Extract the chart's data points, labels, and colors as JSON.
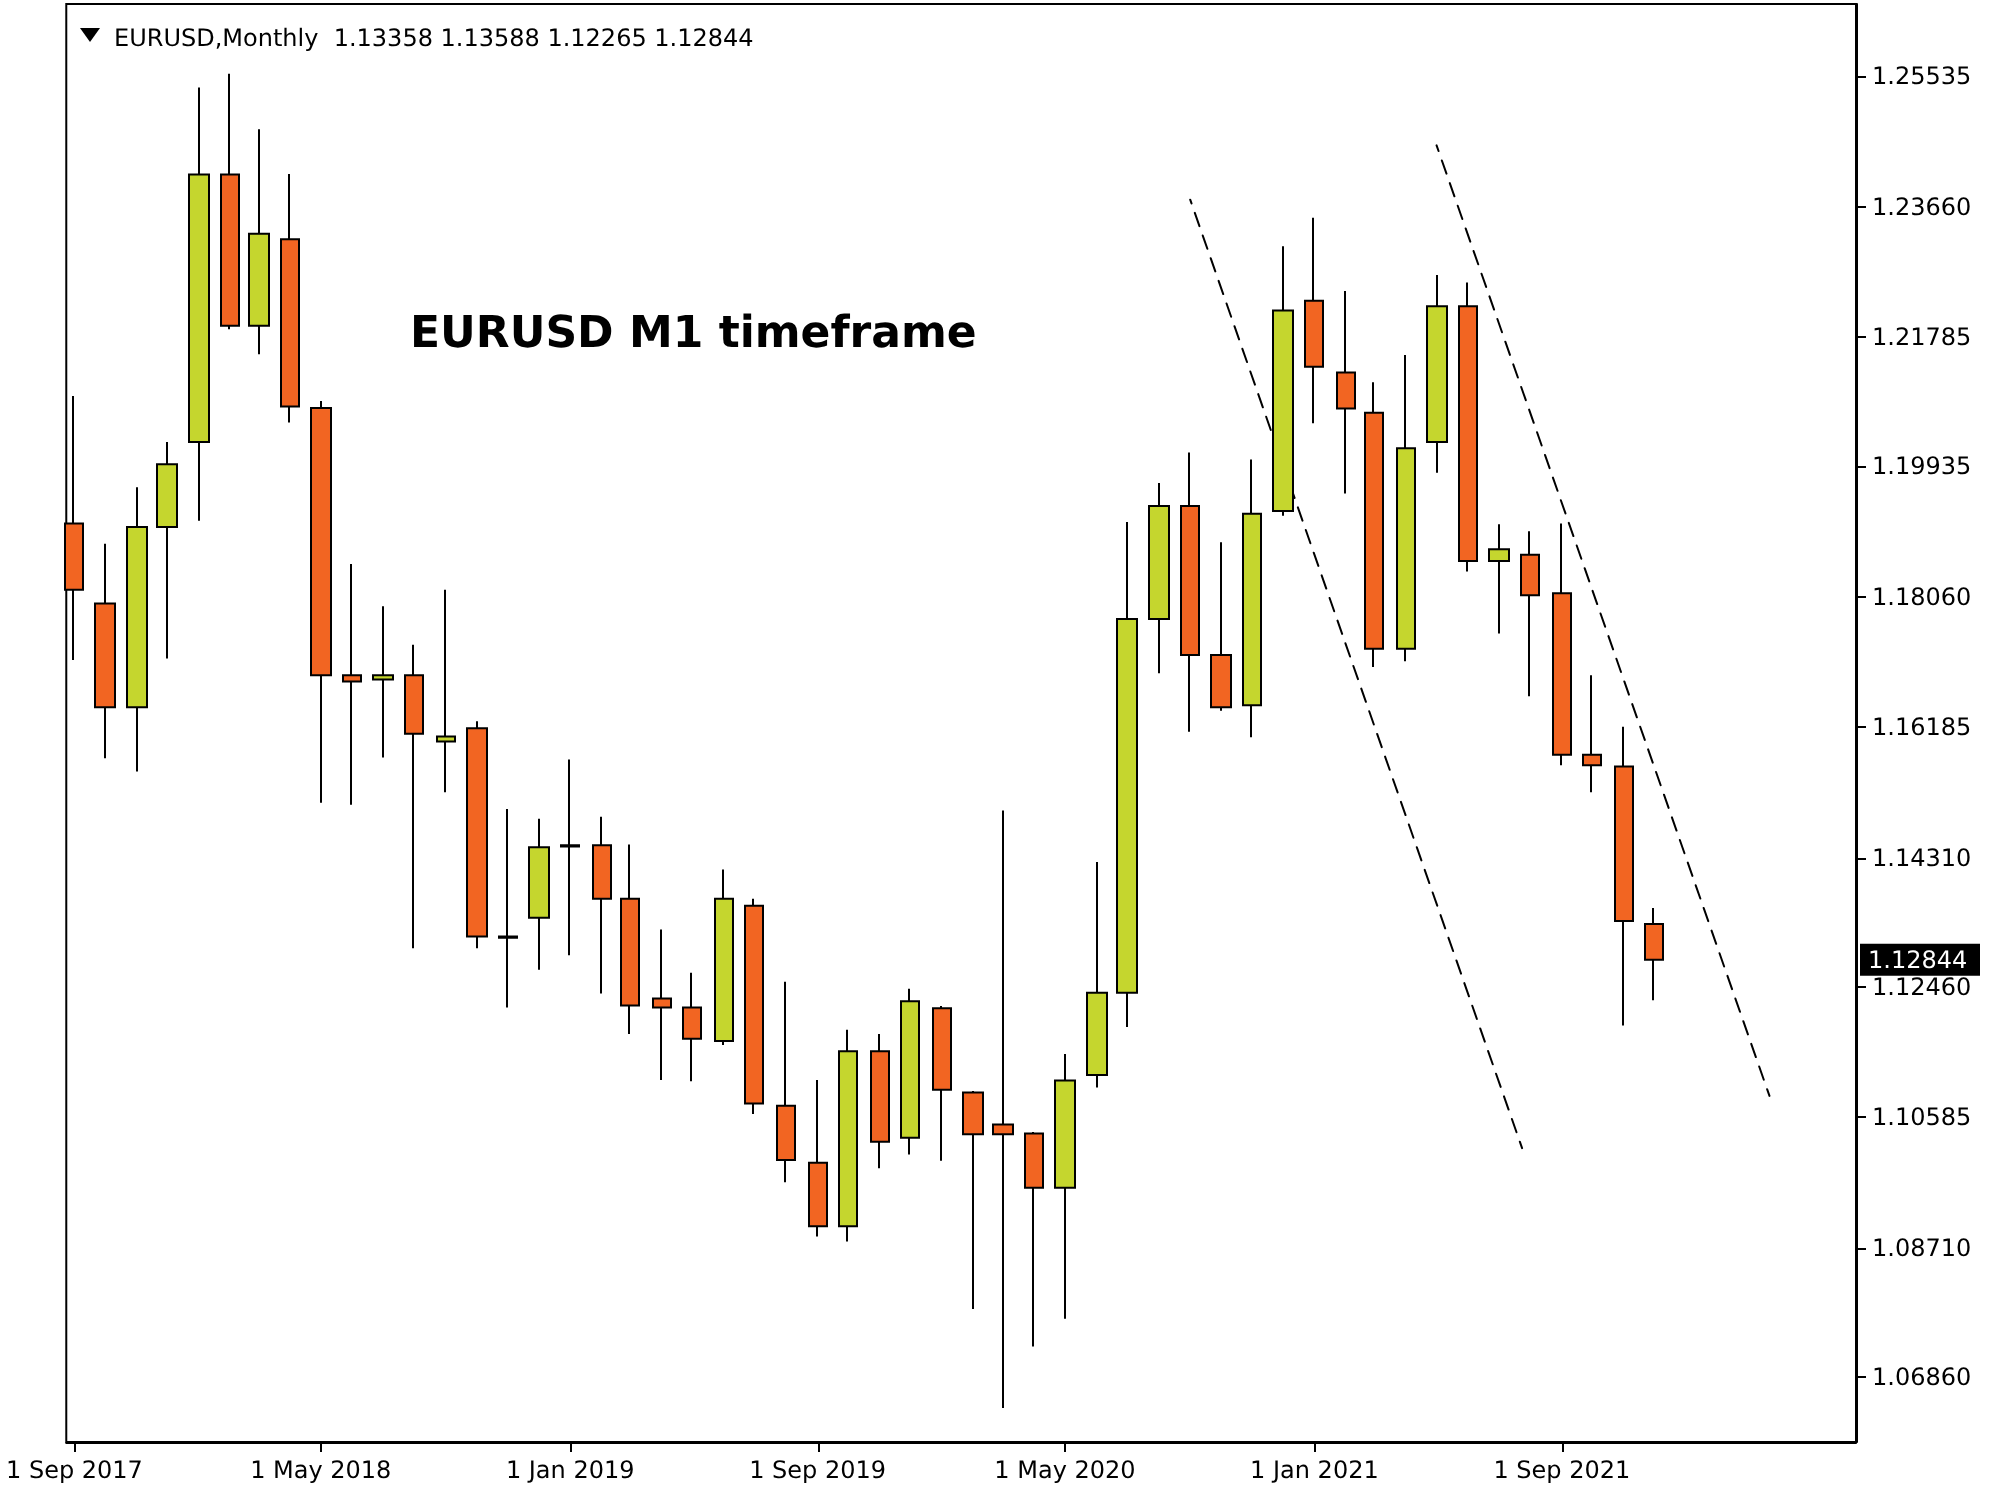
{
  "chart_data": {
    "type": "candlestick",
    "title": "EURUSD,Monthly  1.13358 1.13588 1.12265 1.12844",
    "x": [
      "2017-09",
      "2017-10",
      "2017-11",
      "2017-12",
      "2018-01",
      "2018-02",
      "2018-03",
      "2018-04",
      "2018-05",
      "2018-06",
      "2018-07",
      "2018-08",
      "2018-09",
      "2018-10",
      "2018-11",
      "2018-12",
      "2019-01",
      "2019-02",
      "2019-03",
      "2019-04",
      "2019-05",
      "2019-06",
      "2019-07",
      "2019-08",
      "2019-09",
      "2019-10",
      "2019-11",
      "2019-12",
      "2020-01",
      "2020-02",
      "2020-03",
      "2020-04",
      "2020-05",
      "2020-06",
      "2020-07",
      "2020-08",
      "2020-09",
      "2020-10",
      "2020-11",
      "2020-12",
      "2021-01",
      "2021-02",
      "2021-03",
      "2021-04",
      "2021-05",
      "2021-06",
      "2021-07",
      "2021-08",
      "2021-09",
      "2021-10",
      "2021-11",
      "2021-12"
    ],
    "ohlc": [
      [
        1.1911,
        1.2094,
        1.1715,
        1.1816
      ],
      [
        1.1796,
        1.1882,
        1.1574,
        1.1647
      ],
      [
        1.1647,
        1.1963,
        1.1555,
        1.1906
      ],
      [
        1.1906,
        1.2028,
        1.1717,
        1.1996
      ],
      [
        1.2028,
        1.2537,
        1.1915,
        1.2412
      ],
      [
        1.2412,
        1.2557,
        1.219,
        1.2195
      ],
      [
        1.2195,
        1.2477,
        1.2154,
        1.2327
      ],
      [
        1.2319,
        1.2413,
        1.2056,
        1.2079
      ],
      [
        1.2077,
        1.2087,
        1.151,
        1.1693
      ],
      [
        1.1693,
        1.1853,
        1.1507,
        1.1684
      ],
      [
        1.1687,
        1.1792,
        1.1575,
        1.1693
      ],
      [
        1.1693,
        1.1737,
        1.1301,
        1.1609
      ],
      [
        1.1598,
        1.1816,
        1.1525,
        1.1605
      ],
      [
        1.1617,
        1.1627,
        1.1301,
        1.1318
      ],
      [
        1.1316,
        1.1501,
        1.1216,
        1.1318
      ],
      [
        1.1345,
        1.1487,
        1.127,
        1.1446
      ],
      [
        1.1449,
        1.1572,
        1.1291,
        1.1447
      ],
      [
        1.1449,
        1.149,
        1.1236,
        1.1372
      ],
      [
        1.1372,
        1.145,
        1.1178,
        1.1219
      ],
      [
        1.1229,
        1.1328,
        1.1112,
        1.1216
      ],
      [
        1.1216,
        1.1266,
        1.111,
        1.1171
      ],
      [
        1.1168,
        1.1414,
        1.1162,
        1.1372
      ],
      [
        1.1362,
        1.1372,
        1.1063,
        1.1078
      ],
      [
        1.1075,
        1.1253,
        1.0965,
        1.0997
      ],
      [
        1.0993,
        1.1112,
        1.0887,
        1.0902
      ],
      [
        1.0902,
        1.1184,
        1.088,
        1.1153
      ],
      [
        1.1153,
        1.1178,
        1.0985,
        1.1023
      ],
      [
        1.1029,
        1.1243,
        1.1005,
        1.1225
      ],
      [
        1.1215,
        1.1218,
        1.0996,
        1.1098
      ],
      [
        1.1094,
        1.1096,
        1.0783,
        1.1034
      ],
      [
        1.1048,
        1.1499,
        1.0641,
        1.1034
      ],
      [
        1.1035,
        1.1037,
        1.0729,
        1.0957
      ],
      [
        1.0957,
        1.1149,
        1.0769,
        1.1111
      ],
      [
        1.1119,
        1.1425,
        1.1101,
        1.1237
      ],
      [
        1.1237,
        1.1913,
        1.1188,
        1.1774
      ],
      [
        1.1774,
        1.1969,
        1.1696,
        1.1936
      ],
      [
        1.1936,
        1.2013,
        1.1612,
        1.1722
      ],
      [
        1.1722,
        1.1884,
        1.1642,
        1.1647
      ],
      [
        1.165,
        1.2003,
        1.1604,
        1.1925
      ],
      [
        1.1929,
        1.2309,
        1.1922,
        1.2217
      ],
      [
        1.2231,
        1.235,
        1.2055,
        1.2136
      ],
      [
        1.2128,
        1.2245,
        1.1954,
        1.2076
      ],
      [
        1.207,
        1.2114,
        1.1705,
        1.1731
      ],
      [
        1.1731,
        1.2153,
        1.1713,
        1.2019
      ],
      [
        1.2028,
        1.2268,
        1.1984,
        1.2223
      ],
      [
        1.2223,
        1.2257,
        1.1842,
        1.1857
      ],
      [
        1.1857,
        1.191,
        1.1753,
        1.1874
      ],
      [
        1.1866,
        1.19,
        1.1663,
        1.1808
      ],
      [
        1.1811,
        1.1911,
        1.1564,
        1.1579
      ],
      [
        1.1579,
        1.1693,
        1.1525,
        1.1564
      ],
      [
        1.1562,
        1.1619,
        1.119,
        1.134
      ],
      [
        1.13358,
        1.13588,
        1.12265,
        1.12844
      ]
    ],
    "colors": [
      "#f26522",
      "#f26522",
      "#c5d62e",
      "#c5d62e",
      "#c5d62e",
      "#f26522",
      "#c5d62e",
      "#f26522",
      "#f26522",
      "#f26522",
      "#c5d62e",
      "#f26522",
      "#c5d62e",
      "#f26522",
      "#c5d62e",
      "#c5d62e",
      "#f26522",
      "#f26522",
      "#f26522",
      "#f26522",
      "#f26522",
      "#c5d62e",
      "#f26522",
      "#f26522",
      "#f26522",
      "#c5d62e",
      "#f26522",
      "#c5d62e",
      "#f26522",
      "#f26522",
      "#f26522",
      "#f26522",
      "#c5d62e",
      "#c5d62e",
      "#c5d62e",
      "#c5d62e",
      "#f26522",
      "#f26522",
      "#c5d62e",
      "#c5d62e",
      "#f26522",
      "#f26522",
      "#f26522",
      "#c5d62e",
      "#c5d62e",
      "#f26522",
      "#c5d62e",
      "#f26522",
      "#f26522",
      "#f26522",
      "#f26522",
      "#f26522"
    ],
    "series": [
      {
        "type": "line",
        "color": "#000000",
        "line_style": "dashed",
        "x": [
          "2020-09-01",
          "2021-07-24"
        ],
        "values": [
          1.2376,
          1.1014
        ]
      },
      {
        "type": "line",
        "color": "#000000",
        "line_style": "dashed",
        "x": [
          "2021-05-01",
          "2022-03-24"
        ],
        "values": [
          1.2454,
          1.1089
        ]
      }
    ],
    "marker": "none",
    "annotations": [
      "EURUSD M1 timeframe",
      "1.12844"
    ],
    "xlim": [
      "2017-08-24",
      "2022-06-17"
    ],
    "xticks": [
      {
        "value": "2017-09",
        "label": "1 Sep 2017"
      },
      {
        "value": "2018-05",
        "label": "1 May 2018"
      },
      {
        "value": "2019-01",
        "label": "1 Jan 2019"
      },
      {
        "value": "2019-09",
        "label": "1 Sep 2019"
      },
      {
        "value": "2020-05",
        "label": "1 May 2020"
      },
      {
        "value": "2021-01",
        "label": "1 Jan 2021"
      },
      {
        "value": "2021-09",
        "label": "1 Sep 2021"
      }
    ],
    "ylim": [
      1.0592,
      1.2657
    ],
    "yticks": [
      {
        "value": 1.0686,
        "label": "1.06860"
      },
      {
        "value": 1.0871,
        "label": "1.08710"
      },
      {
        "value": 1.10585,
        "label": "1.10585"
      },
      {
        "value": 1.1246,
        "label": "1.12460"
      },
      {
        "value": 1.1431,
        "label": "1.14310"
      },
      {
        "value": 1.16185,
        "label": "1.16185"
      },
      {
        "value": 1.1806,
        "label": "1.18060"
      },
      {
        "value": 1.19935,
        "label": "1.19935"
      },
      {
        "value": 1.21785,
        "label": "1.21785"
      },
      {
        "value": 1.2366,
        "label": "1.23660"
      },
      {
        "value": 1.25535,
        "label": "1.25535"
      }
    ],
    "grid": false
  }
}
